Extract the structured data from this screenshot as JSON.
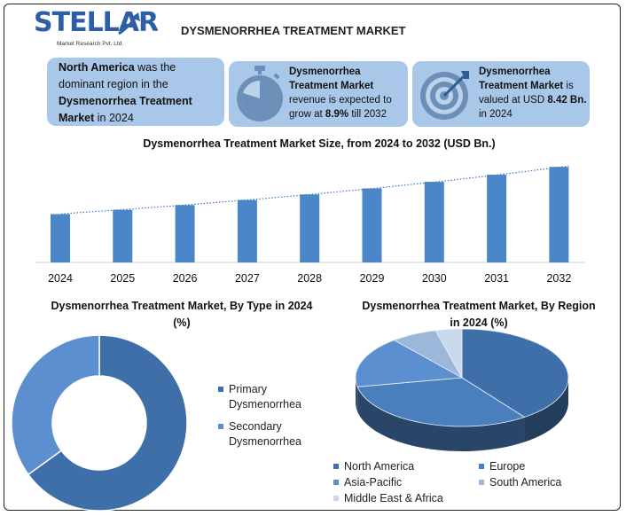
{
  "logo": {
    "name": "STELLAR",
    "subtitle": "Market Research Pvt. Ltd."
  },
  "page_title": "DYSMENORRHEA TREATMENT MARKET",
  "info_cards": [
    {
      "bold": "North America",
      "text1": " was the dominant region in the ",
      "bold2": "Dysmenorrhea Treatment Market",
      "text2": " in 2024"
    },
    {
      "bold": "Dysmenorrhea Treatment Market",
      "text1": " revenue is expected to grow at ",
      "bold2": "8.9%",
      "text2": " till 2032"
    },
    {
      "bold": "Dysmenorrhea Treatment Market",
      "text1": " is valued at USD ",
      "bold2": "8.42 Bn.",
      "text2": " in 2024"
    }
  ],
  "colors": {
    "bar": "#4a86c8",
    "dark_blue": "#3f6fa8",
    "mid_blue": "#5b8fd0",
    "light_blue": "#9bb8da",
    "pale_blue": "#c9d8ea",
    "card": "#a9c7e8",
    "brand": "#2d5fa6"
  },
  "chart_data": [
    {
      "type": "bar",
      "title": "Dysmenorrhea Treatment Market Size, from 2024 to 2032 (USD Bn.)",
      "categories": [
        "2024",
        "2025",
        "2026",
        "2027",
        "2028",
        "2029",
        "2030",
        "2031",
        "2032"
      ],
      "values": [
        8.42,
        9.17,
        9.99,
        10.88,
        11.84,
        12.9,
        14.04,
        15.29,
        16.65
      ],
      "trendline": true,
      "xlabel": "",
      "ylabel": "",
      "ylim": [
        0,
        17
      ]
    },
    {
      "type": "pie",
      "variant": "donut",
      "title": "Dysmenorrhea Treatment Market, By Type in 2024 (%)",
      "labels": [
        "Primary Dysmenorrhea",
        "Secondary Dysmenorrhea"
      ],
      "values": [
        65,
        35
      ],
      "colors": [
        "#3f6fa8",
        "#5b8fd0"
      ]
    },
    {
      "type": "pie",
      "variant": "3d",
      "title": "Dysmenorrhea Treatment Market, By Region in 2024 (%)",
      "labels": [
        "North America",
        "Europe",
        "Asia-Pacific",
        "South America",
        "Middle East & Africa"
      ],
      "values": [
        40,
        32,
        17,
        7,
        4
      ],
      "colors": [
        "#3f6fa8",
        "#4a7fbe",
        "#5b8fd0",
        "#9bb8da",
        "#c9d8ea"
      ]
    }
  ]
}
